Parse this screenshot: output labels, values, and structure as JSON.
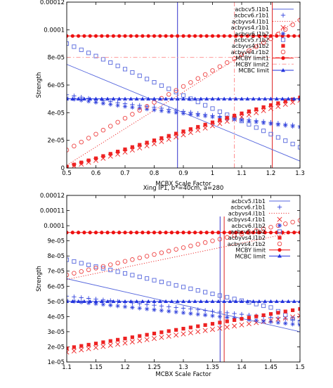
{
  "chart_data": [
    {
      "type": "scatter",
      "title": "",
      "xlabel": "MCBX Scale Factor",
      "ylabel": "Strength",
      "xlim": [
        0.5,
        1.3
      ],
      "ylim": [
        0,
        0.00012
      ],
      "xticks": [
        0.5,
        0.6,
        0.7,
        0.8,
        0.9,
        1.0,
        1.1,
        1.2,
        1.3
      ],
      "xtick_labels": [
        "0.5",
        "0.6",
        "0.7",
        "0.8",
        "0.9",
        "1",
        "1.1",
        "1.2",
        "1.3"
      ],
      "yticks": [
        0,
        2e-05,
        4e-05,
        6e-05,
        8e-05,
        0.0001,
        0.00012
      ],
      "ytick_labels": [
        "0",
        "2e-05",
        "4e-05",
        "6e-05",
        "8e-05",
        "0.0001",
        "0.00012"
      ],
      "grid": false,
      "legend_position": "top-right",
      "vlines": [
        {
          "x": 0.88,
          "color": "#3333cc"
        },
        {
          "x": 1.075,
          "color": "#ff8888",
          "style": "dashed"
        },
        {
          "x": 1.205,
          "color": "#dd2222"
        }
      ],
      "series": [
        {
          "name": "acbcv5.l1b1",
          "marker": "line",
          "color": "#5566dd",
          "x": [
            0.5,
            1.3
          ],
          "y": [
            7.5e-05,
            5e-06
          ]
        },
        {
          "name": "acbcv6.r1b1",
          "marker": "plus",
          "color": "#3344dd",
          "x": [
            0.5,
            0.6,
            0.7,
            0.8,
            0.9,
            1.0,
            1.1,
            1.2,
            1.3
          ],
          "y": [
            5.3e-05,
            4.95e-05,
            4.65e-05,
            4.4e-05,
            4.1e-05,
            3.8e-05,
            3.55e-05,
            3.3e-05,
            3.05e-05
          ]
        },
        {
          "name": "acbyvs4.l1b1",
          "marker": "dotted",
          "color": "#ee3333",
          "x": [
            0.5,
            1.3
          ],
          "y": [
            2e-06,
            0.000108
          ]
        },
        {
          "name": "acbyvs4.r1b1",
          "marker": "x",
          "color": "#ee2222",
          "x": [
            0.5,
            0.6,
            0.7,
            0.8,
            0.9,
            1.0,
            1.1,
            1.2,
            1.3
          ],
          "y": [
            0.0,
            5.5e-06,
            1.15e-05,
            1.75e-05,
            2.4e-05,
            3.05e-05,
            3.7e-05,
            4.3e-05,
            4.9e-05
          ]
        },
        {
          "name": "acbcv6.l1b2",
          "marker": "star",
          "color": "#3344dd",
          "x": [
            0.5,
            0.6,
            0.7,
            0.8,
            0.9,
            1.0,
            1.1,
            1.2,
            1.3
          ],
          "y": [
            5.05e-05,
            4.75e-05,
            4.45e-05,
            4.2e-05,
            3.95e-05,
            3.7e-05,
            3.45e-05,
            3.2e-05,
            2.95e-05
          ]
        },
        {
          "name": "acbcv5.r1b2",
          "marker": "square-open",
          "color": "#5566dd",
          "x": [
            0.5,
            0.6,
            0.7,
            0.8,
            0.9,
            1.0,
            1.1,
            1.2,
            1.3
          ],
          "y": [
            9e-05,
            8.1e-05,
            7.15e-05,
            6.2e-05,
            5.25e-05,
            4.3e-05,
            3.4e-05,
            2.45e-05,
            1.5e-05
          ]
        },
        {
          "name": "acbyvs4.l1b2",
          "marker": "square-filled",
          "color": "#ee2222",
          "x": [
            0.5,
            0.6,
            0.7,
            0.8,
            0.9,
            1.0,
            1.1,
            1.2,
            1.3
          ],
          "y": [
            1e-06,
            7e-06,
            1.35e-05,
            2e-05,
            2.65e-05,
            3.3e-05,
            3.95e-05,
            4.55e-05,
            5.1e-05
          ]
        },
        {
          "name": "acbyvs4.r1b2",
          "marker": "circle-open",
          "color": "#ee4444",
          "x": [
            0.5,
            0.6,
            0.7,
            0.8,
            0.9,
            1.0,
            1.1,
            1.2,
            1.3
          ],
          "y": [
            1.3e-05,
            2.45e-05,
            3.6e-05,
            4.75e-05,
            5.9e-05,
            7.05e-05,
            8.2e-05,
            9.35e-05,
            0.000107
          ]
        },
        {
          "name": "MCBY limit1",
          "marker": "circle-filled-line",
          "color": "#ee1111",
          "x": [
            0.5,
            1.3
          ],
          "y": [
            9.55e-05,
            9.55e-05
          ]
        },
        {
          "name": "MCBY limit2",
          "marker": "dot-dashed",
          "color": "#ff9999",
          "x": [
            0.5,
            1.3
          ],
          "y": [
            8e-05,
            8e-05
          ]
        },
        {
          "name": "MCBC limit",
          "marker": "triangle-line",
          "color": "#2233dd",
          "x": [
            0.5,
            1.3
          ],
          "y": [
            5e-05,
            5e-05
          ]
        }
      ]
    },
    {
      "type": "scatter",
      "title": "Xing IP1, b*=40cm, a=280",
      "xlabel": "MCBX Scale Factor",
      "ylabel": "Strength",
      "xlim": [
        1.1,
        1.5
      ],
      "ylim": [
        1e-05,
        0.00012
      ],
      "xticks": [
        1.1,
        1.15,
        1.2,
        1.25,
        1.3,
        1.35,
        1.4,
        1.45,
        1.5
      ],
      "xtick_labels": [
        "1.1",
        "1.15",
        "1.2",
        "1.25",
        "1.3",
        "1.35",
        "1.4",
        "1.45",
        "1.5"
      ],
      "yticks": [
        1e-05,
        2e-05,
        3e-05,
        4e-05,
        5e-05,
        6e-05,
        7e-05,
        8e-05,
        9e-05,
        0.0001,
        0.00011,
        0.00012
      ],
      "ytick_labels": [
        "1e-05",
        "2e-05",
        "3e-05",
        "4e-05",
        "5e-05",
        "6e-05",
        "7e-05",
        "8e-05",
        "9e-05",
        "0.0001",
        "0.00011",
        "0.00012"
      ],
      "grid": false,
      "legend_position": "top-right",
      "vlines": [
        {
          "x": 1.363,
          "color": "#3333cc"
        },
        {
          "x": 1.37,
          "color": "#dd2222"
        }
      ],
      "series": [
        {
          "name": "acbcv5.l1b1",
          "marker": "line",
          "color": "#5566dd",
          "x": [
            1.1,
            1.5
          ],
          "y": [
            6.5e-05,
            3e-05
          ]
        },
        {
          "name": "acbcv6.r1b1",
          "marker": "plus",
          "color": "#3344dd",
          "x": [
            1.1,
            1.15,
            1.2,
            1.25,
            1.3,
            1.35,
            1.4,
            1.45,
            1.5
          ],
          "y": [
            5.35e-05,
            5.15e-05,
            4.95e-05,
            4.75e-05,
            4.55e-05,
            4.35e-05,
            4.15e-05,
            3.95e-05,
            3.75e-05
          ]
        },
        {
          "name": "acbyvs4.l1b1",
          "marker": "dotted",
          "color": "#ee3333",
          "x": [
            1.1,
            1.5
          ],
          "y": [
            6.45e-05,
            9.65e-05
          ]
        },
        {
          "name": "acbyvs4.r1b1",
          "marker": "x",
          "color": "#ee2222",
          "x": [
            1.1,
            1.15,
            1.2,
            1.25,
            1.3,
            1.35,
            1.4,
            1.45,
            1.5
          ],
          "y": [
            1.65e-05,
            1.95e-05,
            2.25e-05,
            2.55e-05,
            2.85e-05,
            3.15e-05,
            3.45e-05,
            3.75e-05,
            4.05e-05
          ]
        },
        {
          "name": "acbcv6.l1b2",
          "marker": "star",
          "color": "#3344dd",
          "x": [
            1.1,
            1.15,
            1.2,
            1.25,
            1.3,
            1.35,
            1.4,
            1.45,
            1.5
          ],
          "y": [
            5.05e-05,
            4.85e-05,
            4.65e-05,
            4.45e-05,
            4.25e-05,
            4.05e-05,
            3.85e-05,
            3.65e-05,
            3.45e-05
          ]
        },
        {
          "name": "acbcv5.r1b2",
          "marker": "square-open",
          "color": "#5566dd",
          "x": [
            1.1,
            1.15,
            1.2,
            1.25,
            1.3,
            1.35,
            1.4,
            1.45,
            1.5
          ],
          "y": [
            7.75e-05,
            7.3e-05,
            6.85e-05,
            6.4e-05,
            5.95e-05,
            5.5e-05,
            5.05e-05,
            4.6e-05,
            3.6e-05
          ]
        },
        {
          "name": "acbyvs4.l1b2",
          "marker": "square-filled",
          "color": "#ee2222",
          "x": [
            1.1,
            1.15,
            1.2,
            1.25,
            1.3,
            1.35,
            1.4,
            1.45,
            1.5
          ],
          "y": [
            1.9e-05,
            2.22e-05,
            2.55e-05,
            2.88e-05,
            3.2e-05,
            3.52e-05,
            3.85e-05,
            4.17e-05,
            4.5e-05
          ]
        },
        {
          "name": "acbyvs4.r1b2",
          "marker": "circle-open",
          "color": "#ee4444",
          "x": [
            1.1,
            1.15,
            1.2,
            1.25,
            1.3,
            1.35,
            1.4,
            1.45,
            1.5
          ],
          "y": [
            6.75e-05,
            7.2e-05,
            7.65e-05,
            8.1e-05,
            8.55e-05,
            9e-05,
            9.45e-05,
            9.9e-05,
            0.0001035
          ]
        },
        {
          "name": "MCBY limit",
          "marker": "circle-filled-line",
          "color": "#ee1111",
          "x": [
            1.1,
            1.5
          ],
          "y": [
            9.55e-05,
            9.55e-05
          ]
        },
        {
          "name": "MCBC limit",
          "marker": "triangle-line",
          "color": "#2233dd",
          "x": [
            1.1,
            1.5
          ],
          "y": [
            5e-05,
            5e-05
          ]
        }
      ]
    }
  ]
}
